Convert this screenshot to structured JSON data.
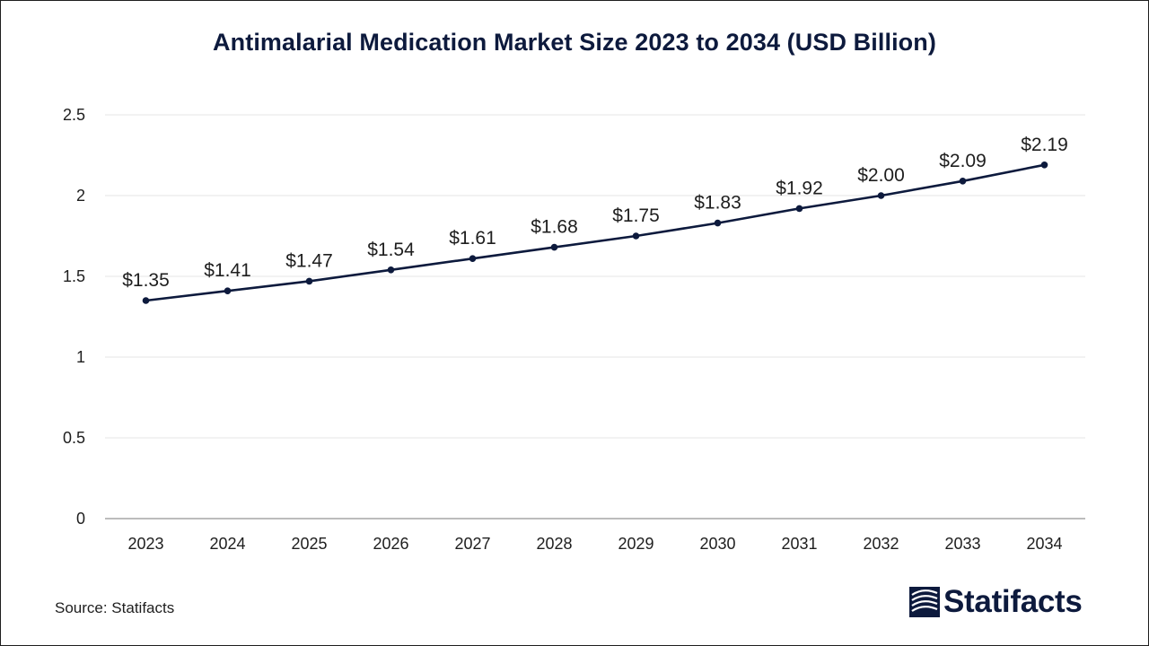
{
  "source_note": "Source: Statifacts",
  "brand": {
    "name": "Statifacts",
    "color": "#0d1a3d"
  },
  "chart_data": {
    "type": "line",
    "title": "Antimalarial Medication Market Size 2023 to 2034 (USD Billion)",
    "xlabel": "",
    "ylabel": "",
    "categories": [
      "2023",
      "2024",
      "2025",
      "2026",
      "2027",
      "2028",
      "2029",
      "2030",
      "2031",
      "2032",
      "2033",
      "2034"
    ],
    "series": [
      {
        "values": [
          1.35,
          1.41,
          1.47,
          1.54,
          1.61,
          1.68,
          1.75,
          1.83,
          1.92,
          2.0,
          2.09,
          2.19
        ],
        "data_labels": [
          "$1.35",
          "$1.41",
          "$1.47",
          "$1.54",
          "$1.61",
          "$1.68",
          "$1.75",
          "$1.83",
          "$1.92",
          "$2.00",
          "$2.09",
          "$2.19"
        ],
        "color": "#0d1a3d"
      }
    ],
    "ylim": [
      0,
      2.5
    ],
    "yticks": [
      0,
      0.5,
      1,
      1.5,
      2,
      2.5
    ],
    "ytick_labels": [
      "0",
      "0.5",
      "1",
      "1.5",
      "2",
      "2.5"
    ],
    "grid": true,
    "legend": "none"
  }
}
